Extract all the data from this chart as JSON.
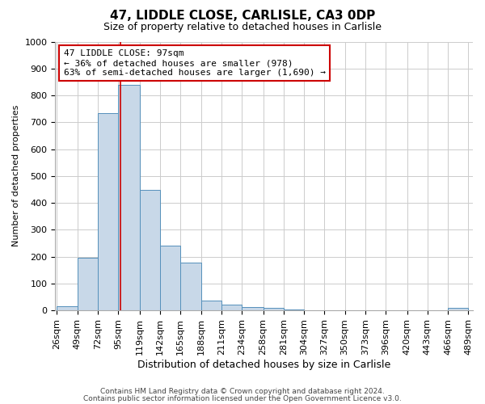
{
  "title": "47, LIDDLE CLOSE, CARLISLE, CA3 0DP",
  "subtitle": "Size of property relative to detached houses in Carlisle",
  "xlabel": "Distribution of detached houses by size in Carlisle",
  "ylabel": "Number of detached properties",
  "bar_color": "#c8d8e8",
  "bar_edge_color": "#5590bb",
  "background_color": "#ffffff",
  "grid_color": "#cccccc",
  "red_line_x": 97,
  "annotation_line1": "47 LIDDLE CLOSE: 97sqm",
  "annotation_line2": "← 36% of detached houses are smaller (978)",
  "annotation_line3": "63% of semi-detached houses are larger (1,690) →",
  "annotation_box_color": "#cc0000",
  "footnote1": "Contains HM Land Registry data © Crown copyright and database right 2024.",
  "footnote2": "Contains public sector information licensed under the Open Government Licence v3.0.",
  "bin_edges": [
    26,
    49,
    72,
    95,
    119,
    142,
    165,
    188,
    211,
    234,
    258,
    281,
    304,
    327,
    350,
    373,
    396,
    420,
    443,
    466,
    489
  ],
  "bin_values": [
    15,
    197,
    734,
    838,
    448,
    240,
    177,
    35,
    22,
    12,
    8,
    2,
    0,
    0,
    0,
    0,
    0,
    0,
    0,
    10
  ],
  "ylim": [
    0,
    1000
  ],
  "yticks": [
    0,
    100,
    200,
    300,
    400,
    500,
    600,
    700,
    800,
    900,
    1000
  ],
  "title_fontsize": 11,
  "subtitle_fontsize": 9,
  "xlabel_fontsize": 9,
  "ylabel_fontsize": 8,
  "tick_fontsize": 8,
  "annot_fontsize": 8,
  "footnote_fontsize": 6.5
}
